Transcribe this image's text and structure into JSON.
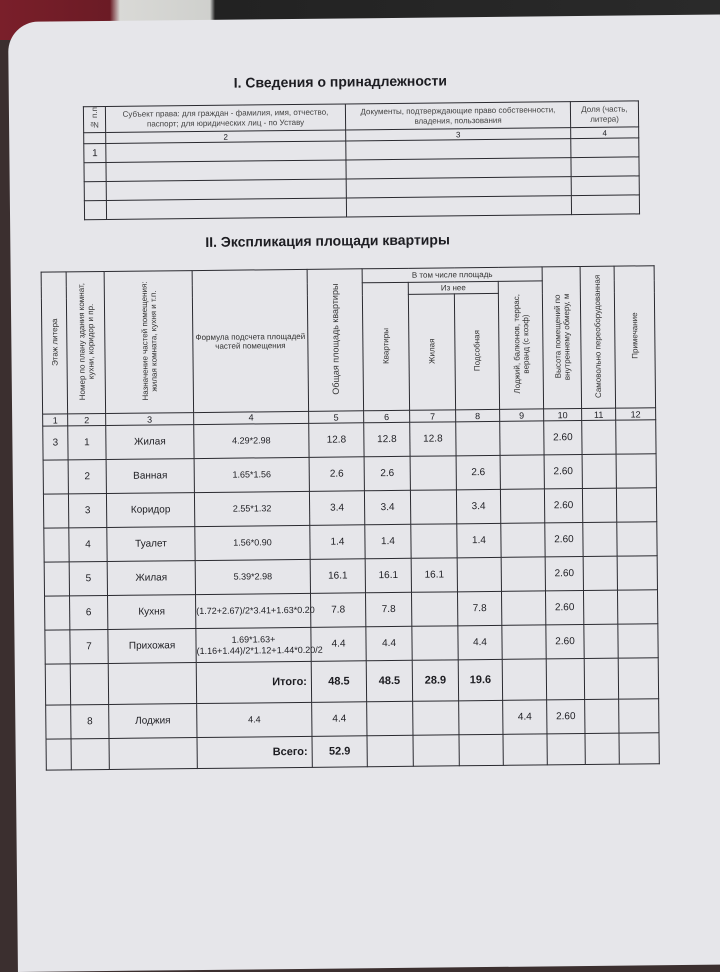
{
  "section1": {
    "title": "I.  Сведения о принадлежности",
    "headers": [
      "№ п.п",
      "Субъект права: для граждан - фамилия, имя, отчество, паспорт; для юридических лиц - по Уставу",
      "Документы, подтверждающие право собственности, владения, пользования",
      "Доля (часть, литера)"
    ],
    "numbers": [
      "",
      "2",
      "3",
      "4"
    ],
    "rows": [
      [
        "1",
        "",
        "",
        ""
      ],
      [
        "",
        "",
        "",
        ""
      ],
      [
        "",
        "",
        "",
        ""
      ],
      [
        "",
        "",
        "",
        ""
      ]
    ]
  },
  "section2": {
    "title": "II.  Экспликация площади квартиры",
    "headers": {
      "floor": "Этаж литера",
      "plan_no": "Номер по плану здания комнат, кухни, коридор и пр.",
      "purpose": "Назначение частей помещения: жилая комната, кухня и т.п.",
      "formula": "Формула подсчета площадей частей помещения",
      "total_area": "Общая площадь квартиры",
      "incl": "В том числе площадь",
      "flat": "Квартиры",
      "of_it": "Из нее",
      "living": "Жилая",
      "auxiliary": "Подсобная",
      "loggia": "Лоджий, балконов, террас, веранд (с коэф)",
      "height": "Высота помещений по внутреннему обмеру, м",
      "unauthorized": "Самовольно переоборудованная",
      "note": "Примечание"
    },
    "numbers": [
      "1",
      "2",
      "3",
      "4",
      "5",
      "6",
      "7",
      "8",
      "9",
      "10",
      "11",
      "12"
    ],
    "rows": [
      [
        "3",
        "1",
        "Жилая",
        "4.29*2.98",
        "12.8",
        "12.8",
        "12.8",
        "",
        "",
        "2.60",
        "",
        ""
      ],
      [
        "",
        "2",
        "Ванная",
        "1.65*1.56",
        "2.6",
        "2.6",
        "",
        "2.6",
        "",
        "2.60",
        "",
        ""
      ],
      [
        "",
        "3",
        "Коридор",
        "2.55*1.32",
        "3.4",
        "3.4",
        "",
        "3.4",
        "",
        "2.60",
        "",
        ""
      ],
      [
        "",
        "4",
        "Туалет",
        "1.56*0.90",
        "1.4",
        "1.4",
        "",
        "1.4",
        "",
        "2.60",
        "",
        ""
      ],
      [
        "",
        "5",
        "Жилая",
        "5.39*2.98",
        "16.1",
        "16.1",
        "16.1",
        "",
        "",
        "2.60",
        "",
        ""
      ],
      [
        "",
        "6",
        "Кухня",
        "(1.72+2.67)/2*3.41+1.63*0.20",
        "7.8",
        "7.8",
        "",
        "7.8",
        "",
        "2.60",
        "",
        ""
      ],
      [
        "",
        "7",
        "Прихожая",
        "1.69*1.63+(1.16+1.44)/2*1.12+1.44*0.20/2",
        "4.4",
        "4.4",
        "",
        "4.4",
        "",
        "2.60",
        "",
        ""
      ]
    ],
    "subtotal": {
      "label": "Итого:",
      "total": "48.5",
      "flat": "48.5",
      "living": "28.9",
      "auxiliary": "19.6"
    },
    "loggia_row": [
      "",
      "8",
      "Лоджия",
      "4.4",
      "4.4",
      "",
      "",
      "",
      "4.4",
      "2.60",
      "",
      ""
    ],
    "grand_total": {
      "label": "Всего:",
      "total": "52.9"
    }
  }
}
